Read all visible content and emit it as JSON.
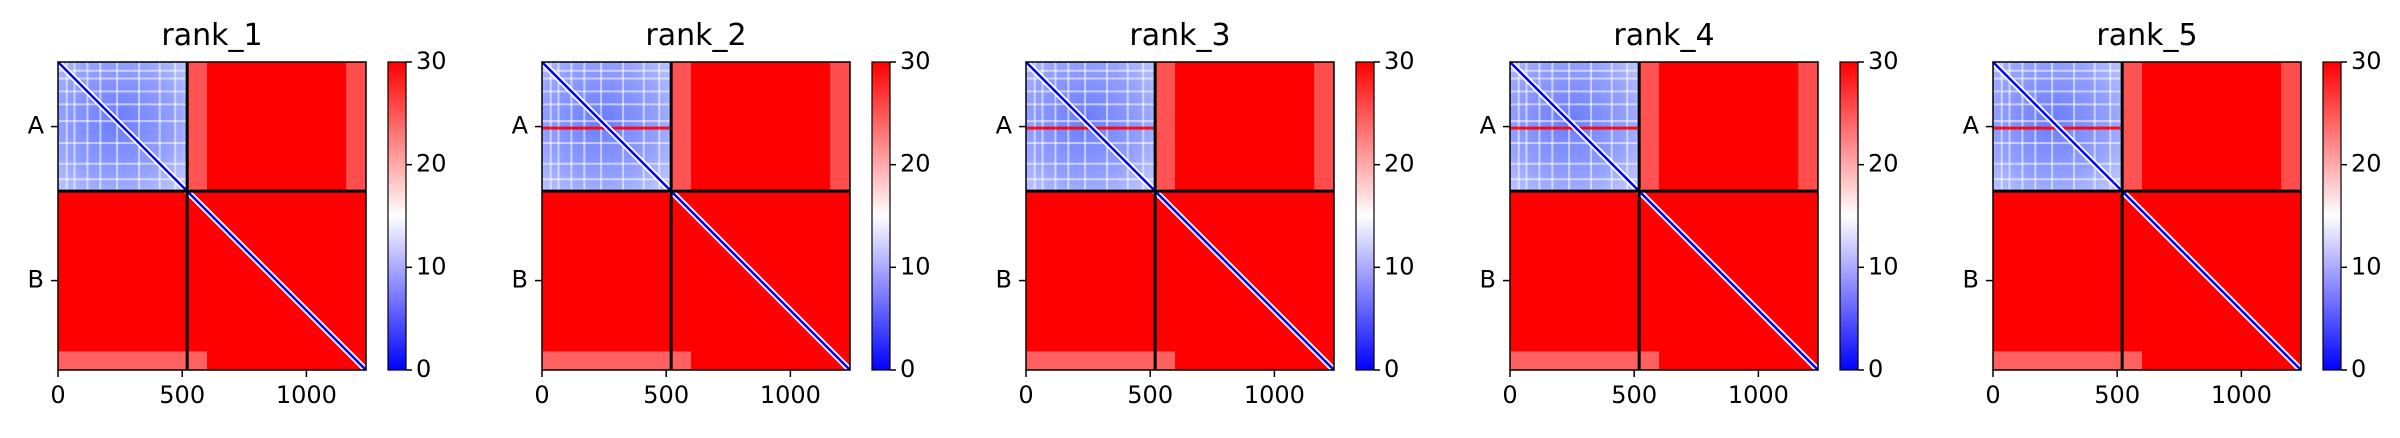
{
  "chart_data": {
    "type": "heatmap",
    "colormap": "bwr",
    "vmin": 0,
    "vmax": 30,
    "colorbar_ticks": [
      0,
      10,
      20,
      30
    ],
    "x_ticks": [
      0,
      500,
      1000
    ],
    "x_range": [
      0,
      1240
    ],
    "chain_boundary": 520,
    "chains": [
      {
        "label": "A",
        "range": [
          0,
          520
        ]
      },
      {
        "label": "B",
        "range": [
          520,
          1240
        ]
      }
    ],
    "panels": [
      {
        "title": "rank_1"
      },
      {
        "title": "rank_2"
      },
      {
        "title": "rank_3"
      },
      {
        "title": "rank_4"
      },
      {
        "title": "rank_5"
      }
    ],
    "colors": {
      "low": "#0000ff",
      "mid": "#ffffff",
      "high": "#ff0000",
      "divider": "#000000"
    }
  }
}
